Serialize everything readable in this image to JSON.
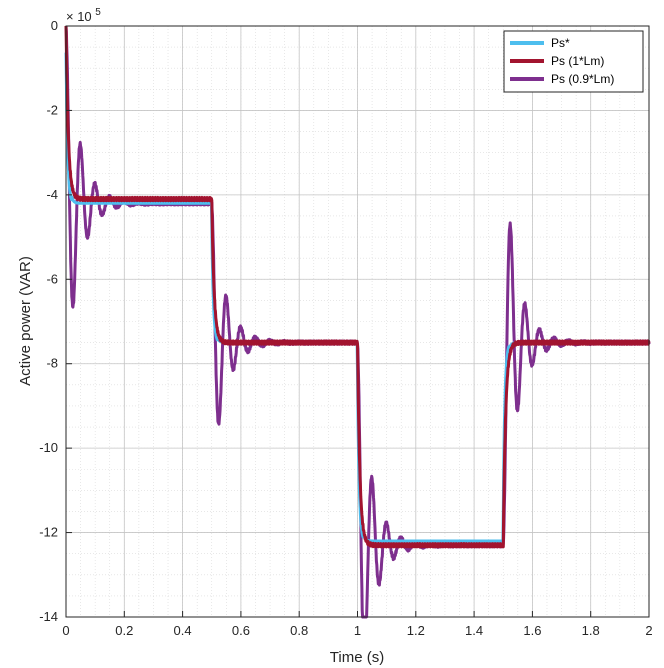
{
  "chart_data": {
    "type": "line",
    "title": "",
    "xlabel": "Time (s)",
    "ylabel": "Active power (VAR)",
    "exponent_label": "× 10",
    "exponent_power": "5",
    "xlim": [
      0,
      2
    ],
    "ylim": [
      -14,
      0
    ],
    "xticks": [
      0,
      0.2,
      0.4,
      0.6,
      0.8,
      1,
      1.2,
      1.4,
      1.6,
      1.8,
      2
    ],
    "xtick_labels": [
      "0",
      "0.2",
      "0.4",
      "0.6",
      "0.8",
      "1",
      "1.2",
      "1.4",
      "1.6",
      "1.8",
      "2"
    ],
    "yticks": [
      -14,
      -12,
      -10,
      -8,
      -6,
      -4,
      -2,
      0
    ],
    "ytick_labels": [
      "-14",
      "-12",
      "-10",
      "-8",
      "-6",
      "-4",
      "-2",
      "0"
    ],
    "grid": "dotted-minor",
    "legend_position": "top-right",
    "series": [
      {
        "name": "Ps*",
        "color": "#4DBEEE",
        "steps": [
          [
            0,
            -4.2
          ],
          [
            0.5,
            -7.5
          ],
          [
            1.0,
            -12.2
          ],
          [
            1.5,
            -7.5
          ]
        ]
      },
      {
        "name": "Ps (1*Lm)",
        "color": "#A2142F",
        "steps": [
          [
            0,
            -4.1
          ],
          [
            0.5,
            -7.5
          ],
          [
            1.0,
            -12.3
          ],
          [
            1.5,
            -7.5
          ]
        ]
      },
      {
        "name": "Ps (0.9*Lm)",
        "color": "#7E2F8E",
        "steps": [
          [
            0,
            -4.2
          ],
          [
            0.5,
            -7.5
          ],
          [
            1.0,
            -12.3
          ],
          [
            1.5,
            -7.5
          ]
        ],
        "oscillation": {
          "damping_s": 0.045,
          "period_s": 0.05
        }
      }
    ]
  }
}
